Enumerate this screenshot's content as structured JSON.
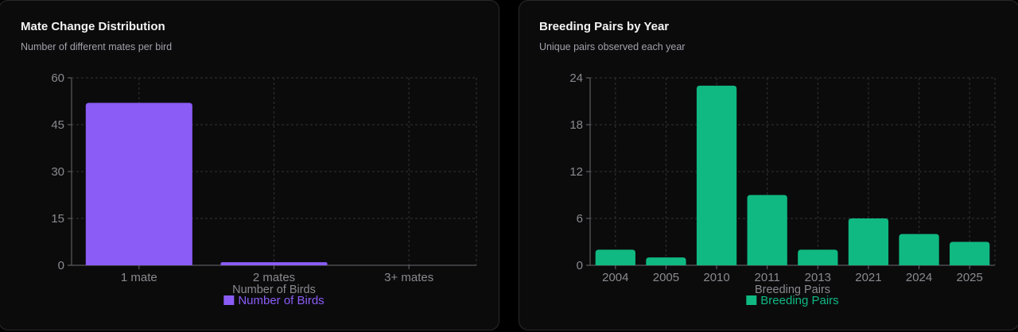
{
  "cards": [
    {
      "title": "Mate Change Distribution",
      "subtitle": "Number of different mates per bird"
    },
    {
      "title": "Breeding Pairs by Year",
      "subtitle": "Unique pairs observed each year"
    }
  ],
  "chart_data": [
    {
      "type": "bar",
      "title": "Mate Change Distribution",
      "subtitle": "Number of different mates per bird",
      "categories": [
        "1 mate",
        "2 mates",
        "3+ mates"
      ],
      "series": [
        {
          "name": "Number of Birds",
          "values": [
            52,
            1,
            0
          ]
        }
      ],
      "xlabel": "Number of Birds",
      "ylabel": "",
      "ylim": [
        0,
        60
      ],
      "yticks": [
        0,
        15,
        30,
        45,
        60
      ],
      "color": "#8b5cf6",
      "grid": true,
      "legend": "bottom-center"
    },
    {
      "type": "bar",
      "title": "Breeding Pairs by Year",
      "subtitle": "Unique pairs observed each year",
      "categories": [
        "2004",
        "2005",
        "2010",
        "2011",
        "2013",
        "2021",
        "2024",
        "2025"
      ],
      "series": [
        {
          "name": "Breeding Pairs",
          "values": [
            2,
            1,
            23,
            9,
            2,
            6,
            4,
            3
          ]
        }
      ],
      "xlabel": "Breeding Pairs",
      "ylabel": "",
      "ylim": [
        0,
        24
      ],
      "yticks": [
        0,
        6,
        12,
        18,
        24
      ],
      "color": "#10b981",
      "grid": true,
      "legend": "bottom-center"
    }
  ]
}
